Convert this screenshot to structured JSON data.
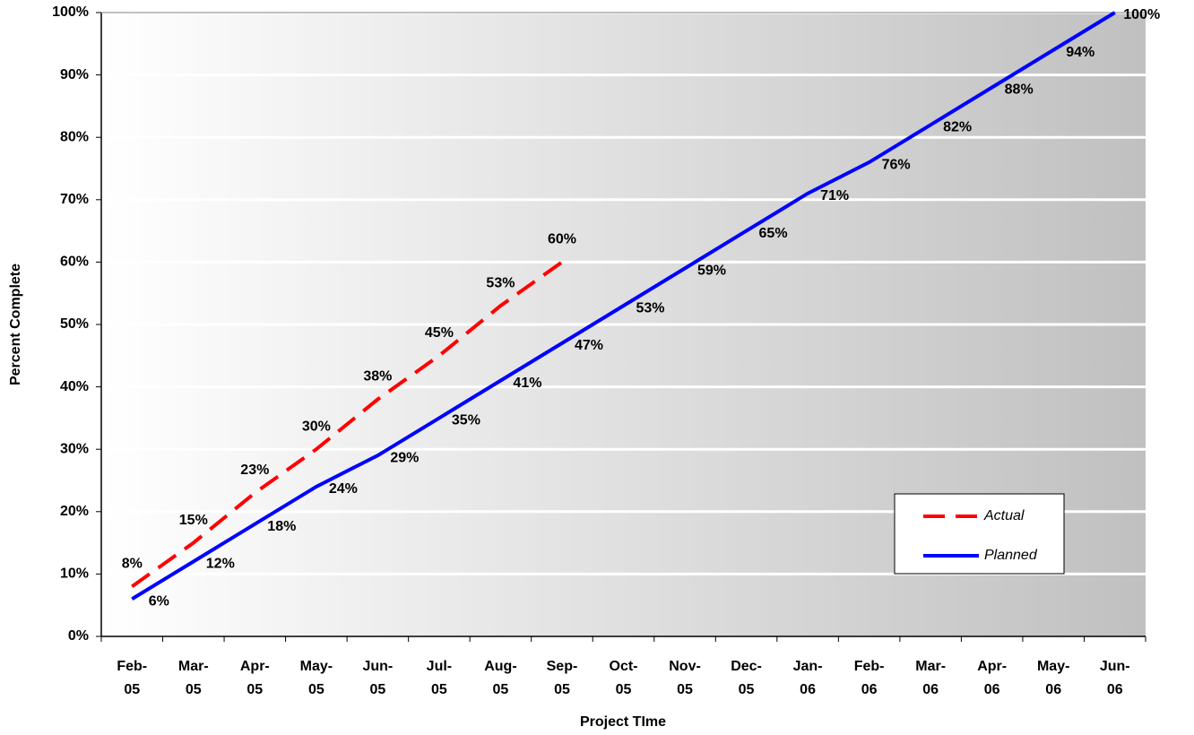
{
  "chart_data": {
    "type": "line",
    "y_label": "Percent Complete",
    "x_label": "Project TIme",
    "categories": [
      "Feb-05",
      "Mar-05",
      "Apr-05",
      "May-05",
      "Jun-05",
      "Jul-05",
      "Aug-05",
      "Sep-05",
      "Oct-05",
      "Nov-05",
      "Dec-05",
      "Jan-06",
      "Feb-06",
      "Mar-06",
      "Apr-06",
      "May-06",
      "Jun-06"
    ],
    "series": [
      {
        "name": "Actual",
        "color": "#ff0000",
        "dashed": true,
        "values": [
          8,
          15,
          23,
          30,
          38,
          45,
          53,
          60,
          null,
          null,
          null,
          null,
          null,
          null,
          null,
          null,
          null
        ],
        "value_labels": [
          "8%",
          "15%",
          "23%",
          "30%",
          "38%",
          "45%",
          "53%",
          "60%",
          null,
          null,
          null,
          null,
          null,
          null,
          null,
          null,
          null
        ]
      },
      {
        "name": "Planned",
        "color": "#0000ff",
        "dashed": false,
        "values": [
          6,
          12,
          18,
          24,
          29,
          35,
          41,
          47,
          53,
          59,
          65,
          71,
          76,
          82,
          88,
          94,
          100
        ],
        "value_labels": [
          "6%",
          "12%",
          "18%",
          "24%",
          "29%",
          "35%",
          "41%",
          "47%",
          "53%",
          "59%",
          "65%",
          "71%",
          "76%",
          "82%",
          "88%",
          "94%",
          "100%"
        ]
      }
    ],
    "ylim": [
      0,
      100
    ],
    "yticks": [
      {
        "value": 0,
        "label": "0%"
      },
      {
        "value": 10,
        "label": "10%"
      },
      {
        "value": 20,
        "label": "20%"
      },
      {
        "value": 30,
        "label": "30%"
      },
      {
        "value": 40,
        "label": "40%"
      },
      {
        "value": 50,
        "label": "50%"
      },
      {
        "value": 60,
        "label": "60%"
      },
      {
        "value": 70,
        "label": "70%"
      },
      {
        "value": 80,
        "label": "80%"
      },
      {
        "value": 90,
        "label": "90%"
      },
      {
        "value": 100,
        "label": "100%"
      }
    ],
    "grid": true
  }
}
